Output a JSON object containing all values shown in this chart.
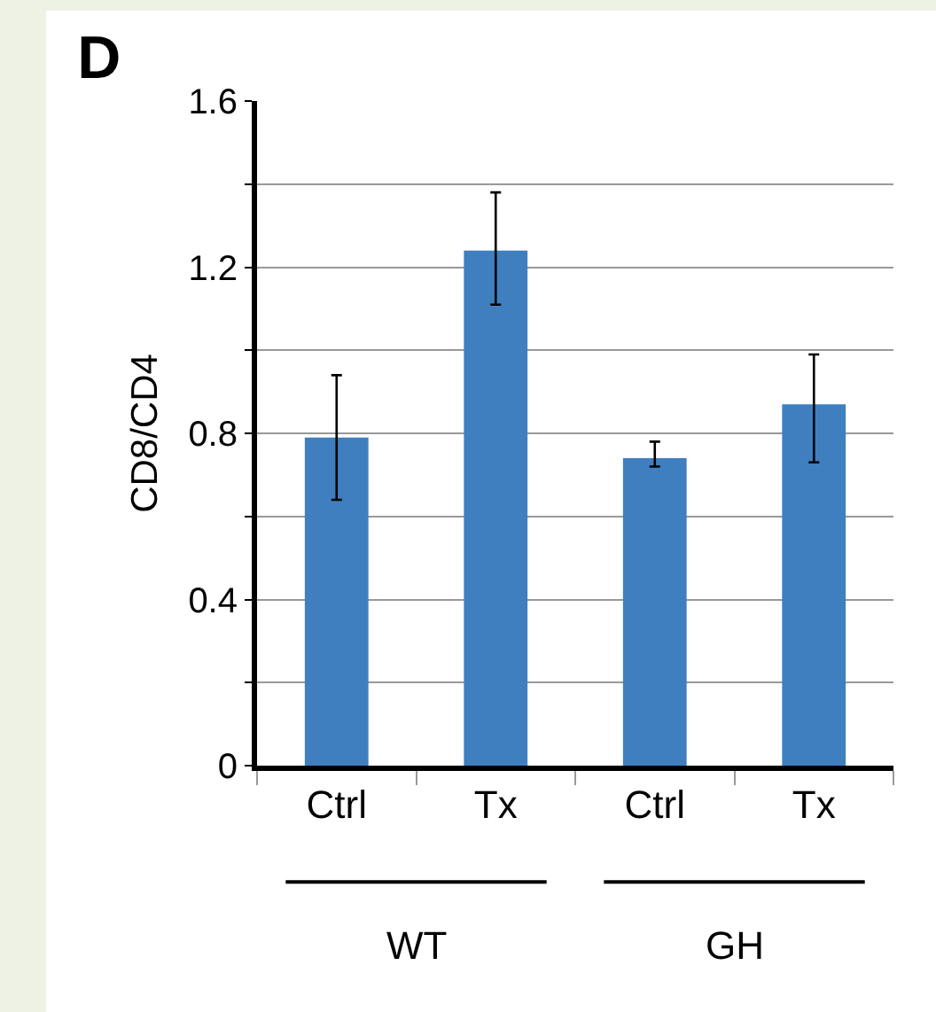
{
  "chart_data": {
    "type": "bar",
    "title": "D",
    "ylabel": "CD8/CD4",
    "categories": [
      "Ctrl",
      "Tx",
      "Ctrl",
      "Tx"
    ],
    "values": [
      0.79,
      1.24,
      0.74,
      0.87
    ],
    "errors": [
      [
        0.64,
        0.94
      ],
      [
        1.11,
        1.38
      ],
      [
        0.72,
        0.78
      ],
      [
        0.73,
        0.99
      ]
    ],
    "color": "#3f7fc0",
    "ylim": [
      0,
      1.6
    ],
    "yticks": [
      0,
      {
        "value": 0.2,
        "label": null
      },
      0.4,
      {
        "value": 0.6,
        "label": null
      },
      0.8,
      {
        "value": 1.0,
        "label": null
      },
      1.2,
      {
        "value": 1.4,
        "label": null
      },
      1.6
    ],
    "grid": "y",
    "annotations": [
      "WT",
      "GH"
    ]
  }
}
